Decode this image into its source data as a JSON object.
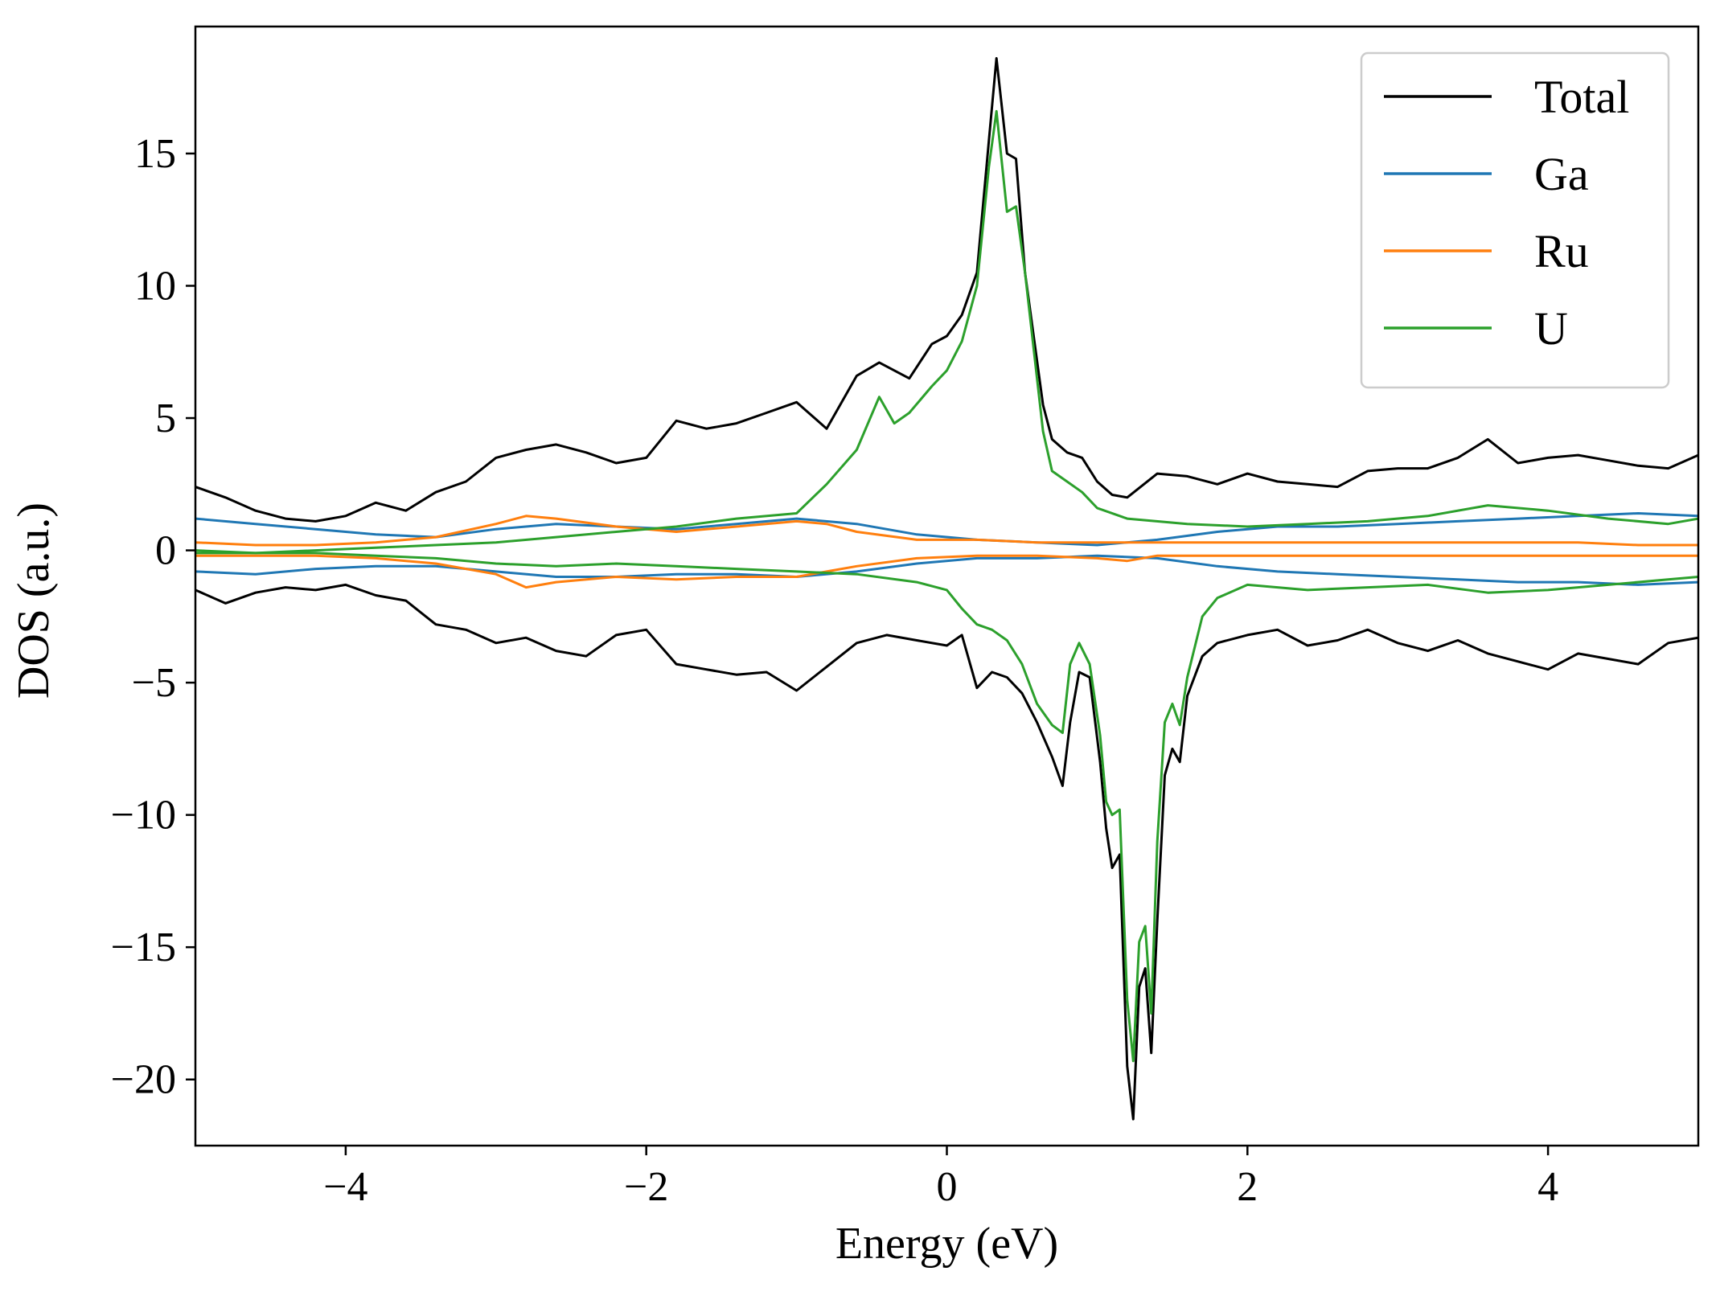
{
  "chart_data": {
    "type": "line",
    "title": "",
    "xlabel": "Energy (eV)",
    "ylabel": "DOS (a.u.)",
    "xlim": [
      -5,
      5
    ],
    "ylim": [
      -22.5,
      19.8
    ],
    "xticks": [
      -4,
      -2,
      0,
      2,
      4
    ],
    "xtick_labels": [
      "−4",
      "−2",
      "0",
      "2",
      "4"
    ],
    "yticks": [
      -20,
      -15,
      -10,
      -5,
      0,
      5,
      10,
      15
    ],
    "ytick_labels": [
      "−20",
      "−15",
      "−10",
      "−5",
      "0",
      "5",
      "10",
      "15"
    ],
    "grid": false,
    "legend": "top-right",
    "series": [
      {
        "name": "Total",
        "spin": "up",
        "color": "#000000",
        "x": [
          -5.0,
          -4.8,
          -4.6,
          -4.4,
          -4.2,
          -4.0,
          -3.8,
          -3.6,
          -3.4,
          -3.2,
          -3.0,
          -2.8,
          -2.6,
          -2.4,
          -2.2,
          -2.0,
          -1.8,
          -1.6,
          -1.4,
          -1.2,
          -1.0,
          -0.8,
          -0.6,
          -0.45,
          -0.35,
          -0.25,
          -0.1,
          0.0,
          0.1,
          0.2,
          0.28,
          0.33,
          0.4,
          0.46,
          0.52,
          0.58,
          0.64,
          0.7,
          0.8,
          0.9,
          1.0,
          1.1,
          1.2,
          1.4,
          1.6,
          1.8,
          2.0,
          2.2,
          2.4,
          2.6,
          2.8,
          3.0,
          3.2,
          3.4,
          3.6,
          3.8,
          4.0,
          4.2,
          4.4,
          4.6,
          4.8,
          5.0
        ],
        "y": [
          2.4,
          2.0,
          1.5,
          1.2,
          1.1,
          1.3,
          1.8,
          1.5,
          2.2,
          2.6,
          3.5,
          3.8,
          4.0,
          3.7,
          3.3,
          3.5,
          4.9,
          4.6,
          4.8,
          5.2,
          5.6,
          4.6,
          6.6,
          7.1,
          6.8,
          6.5,
          7.8,
          8.1,
          8.9,
          10.5,
          15.5,
          18.6,
          15.0,
          14.8,
          10.5,
          8.0,
          5.5,
          4.2,
          3.7,
          3.5,
          2.6,
          2.1,
          2.0,
          2.9,
          2.8,
          2.5,
          2.9,
          2.6,
          2.5,
          2.4,
          3.0,
          3.1,
          3.1,
          3.5,
          4.2,
          3.3,
          3.5,
          3.6,
          3.4,
          3.2,
          3.1,
          3.6
        ]
      },
      {
        "name": "Total",
        "spin": "down",
        "color": "#000000",
        "x": [
          -5.0,
          -4.8,
          -4.6,
          -4.4,
          -4.2,
          -4.0,
          -3.8,
          -3.6,
          -3.4,
          -3.2,
          -3.0,
          -2.8,
          -2.6,
          -2.4,
          -2.2,
          -2.0,
          -1.8,
          -1.6,
          -1.4,
          -1.2,
          -1.0,
          -0.8,
          -0.6,
          -0.4,
          -0.2,
          0.0,
          0.1,
          0.2,
          0.3,
          0.4,
          0.5,
          0.6,
          0.7,
          0.77,
          0.82,
          0.88,
          0.95,
          1.02,
          1.06,
          1.1,
          1.15,
          1.2,
          1.24,
          1.28,
          1.32,
          1.36,
          1.4,
          1.45,
          1.5,
          1.55,
          1.6,
          1.7,
          1.8,
          2.0,
          2.2,
          2.4,
          2.6,
          2.8,
          3.0,
          3.2,
          3.4,
          3.6,
          3.8,
          4.0,
          4.2,
          4.4,
          4.6,
          4.8,
          5.0
        ],
        "y": [
          -1.5,
          -2.0,
          -1.6,
          -1.4,
          -1.5,
          -1.3,
          -1.7,
          -1.9,
          -2.8,
          -3.0,
          -3.5,
          -3.3,
          -3.8,
          -4.0,
          -3.2,
          -3.0,
          -4.3,
          -4.5,
          -4.7,
          -4.6,
          -5.3,
          -4.4,
          -3.5,
          -3.2,
          -3.4,
          -3.6,
          -3.2,
          -5.2,
          -4.6,
          -4.8,
          -5.4,
          -6.5,
          -7.8,
          -8.9,
          -6.5,
          -4.6,
          -4.8,
          -8.0,
          -10.5,
          -12.0,
          -11.5,
          -19.5,
          -21.5,
          -16.5,
          -15.8,
          -19.0,
          -14.0,
          -8.5,
          -7.5,
          -8.0,
          -5.5,
          -4.0,
          -3.5,
          -3.2,
          -3.0,
          -3.6,
          -3.4,
          -3.0,
          -3.5,
          -3.8,
          -3.4,
          -3.9,
          -4.2,
          -4.5,
          -3.9,
          -4.1,
          -4.3,
          -3.5,
          -3.3
        ]
      },
      {
        "name": "Ga",
        "spin": "up",
        "color": "#1f77b4",
        "x": [
          -5.0,
          -4.6,
          -4.2,
          -3.8,
          -3.4,
          -3.0,
          -2.6,
          -2.2,
          -1.8,
          -1.4,
          -1.0,
          -0.6,
          -0.2,
          0.2,
          0.6,
          1.0,
          1.4,
          1.8,
          2.2,
          2.6,
          3.0,
          3.4,
          3.8,
          4.2,
          4.6,
          5.0
        ],
        "y": [
          1.2,
          1.0,
          0.8,
          0.6,
          0.5,
          0.8,
          1.0,
          0.9,
          0.8,
          1.0,
          1.2,
          1.0,
          0.6,
          0.4,
          0.3,
          0.2,
          0.4,
          0.7,
          0.9,
          0.9,
          1.0,
          1.1,
          1.2,
          1.3,
          1.4,
          1.3
        ]
      },
      {
        "name": "Ga",
        "spin": "down",
        "color": "#1f77b4",
        "x": [
          -5.0,
          -4.6,
          -4.2,
          -3.8,
          -3.4,
          -3.0,
          -2.6,
          -2.2,
          -1.8,
          -1.4,
          -1.0,
          -0.6,
          -0.2,
          0.2,
          0.6,
          1.0,
          1.4,
          1.8,
          2.2,
          2.6,
          3.0,
          3.4,
          3.8,
          4.2,
          4.6,
          5.0
        ],
        "y": [
          -0.8,
          -0.9,
          -0.7,
          -0.6,
          -0.6,
          -0.8,
          -1.0,
          -1.0,
          -0.9,
          -0.9,
          -1.0,
          -0.8,
          -0.5,
          -0.3,
          -0.3,
          -0.2,
          -0.3,
          -0.6,
          -0.8,
          -0.9,
          -1.0,
          -1.1,
          -1.2,
          -1.2,
          -1.3,
          -1.2
        ]
      },
      {
        "name": "Ru",
        "spin": "up",
        "color": "#ff7f0e",
        "x": [
          -5.0,
          -4.6,
          -4.2,
          -3.8,
          -3.4,
          -3.0,
          -2.8,
          -2.6,
          -2.2,
          -1.8,
          -1.4,
          -1.0,
          -0.8,
          -0.6,
          -0.2,
          0.2,
          0.6,
          1.0,
          1.4,
          1.8,
          2.2,
          2.6,
          3.0,
          3.4,
          3.8,
          4.2,
          4.6,
          5.0
        ],
        "y": [
          0.3,
          0.2,
          0.2,
          0.3,
          0.5,
          1.0,
          1.3,
          1.2,
          0.9,
          0.7,
          0.9,
          1.1,
          1.0,
          0.7,
          0.4,
          0.4,
          0.3,
          0.3,
          0.3,
          0.3,
          0.3,
          0.3,
          0.3,
          0.3,
          0.3,
          0.3,
          0.2,
          0.2
        ]
      },
      {
        "name": "Ru",
        "spin": "down",
        "color": "#ff7f0e",
        "x": [
          -5.0,
          -4.6,
          -4.2,
          -3.8,
          -3.4,
          -3.0,
          -2.8,
          -2.6,
          -2.2,
          -1.8,
          -1.4,
          -1.0,
          -0.8,
          -0.6,
          -0.2,
          0.2,
          0.6,
          1.0,
          1.2,
          1.4,
          1.8,
          2.2,
          2.6,
          3.0,
          3.4,
          3.8,
          4.2,
          4.6,
          5.0
        ],
        "y": [
          -0.2,
          -0.2,
          -0.2,
          -0.3,
          -0.5,
          -0.9,
          -1.4,
          -1.2,
          -1.0,
          -1.1,
          -1.0,
          -1.0,
          -0.8,
          -0.6,
          -0.3,
          -0.2,
          -0.2,
          -0.3,
          -0.4,
          -0.2,
          -0.2,
          -0.2,
          -0.2,
          -0.2,
          -0.2,
          -0.2,
          -0.2,
          -0.2,
          -0.2
        ]
      },
      {
        "name": "U",
        "spin": "up",
        "color": "#2ca02c",
        "x": [
          -5.0,
          -4.6,
          -4.2,
          -3.8,
          -3.4,
          -3.0,
          -2.6,
          -2.2,
          -1.8,
          -1.4,
          -1.0,
          -0.8,
          -0.6,
          -0.45,
          -0.35,
          -0.25,
          -0.1,
          0.0,
          0.1,
          0.2,
          0.28,
          0.33,
          0.4,
          0.46,
          0.52,
          0.58,
          0.64,
          0.7,
          0.8,
          0.9,
          1.0,
          1.2,
          1.6,
          2.0,
          2.4,
          2.8,
          3.2,
          3.6,
          4.0,
          4.4,
          4.8,
          5.0
        ],
        "y": [
          -0.1,
          -0.1,
          0.0,
          0.1,
          0.2,
          0.3,
          0.5,
          0.7,
          0.9,
          1.2,
          1.4,
          2.5,
          3.8,
          5.8,
          4.8,
          5.2,
          6.2,
          6.8,
          7.9,
          10.0,
          14.5,
          16.6,
          12.8,
          13.0,
          10.5,
          7.5,
          4.5,
          3.0,
          2.6,
          2.2,
          1.6,
          1.2,
          1.0,
          0.9,
          1.0,
          1.1,
          1.3,
          1.7,
          1.5,
          1.2,
          1.0,
          1.2
        ]
      },
      {
        "name": "U",
        "spin": "down",
        "color": "#2ca02c",
        "x": [
          -5.0,
          -4.6,
          -4.2,
          -3.8,
          -3.4,
          -3.0,
          -2.6,
          -2.2,
          -1.8,
          -1.4,
          -1.0,
          -0.6,
          -0.2,
          0.0,
          0.1,
          0.2,
          0.3,
          0.4,
          0.5,
          0.6,
          0.7,
          0.77,
          0.82,
          0.88,
          0.95,
          1.02,
          1.06,
          1.1,
          1.15,
          1.2,
          1.24,
          1.28,
          1.32,
          1.36,
          1.4,
          1.45,
          1.5,
          1.55,
          1.6,
          1.7,
          1.8,
          2.0,
          2.4,
          2.8,
          3.2,
          3.6,
          4.0,
          4.4,
          4.8,
          5.0
        ],
        "y": [
          0.0,
          -0.1,
          -0.1,
          -0.2,
          -0.3,
          -0.5,
          -0.6,
          -0.5,
          -0.6,
          -0.7,
          -0.8,
          -0.9,
          -1.2,
          -1.5,
          -2.2,
          -2.8,
          -3.0,
          -3.4,
          -4.3,
          -5.8,
          -6.6,
          -6.9,
          -4.3,
          -3.5,
          -4.3,
          -7.0,
          -9.5,
          -10.0,
          -9.8,
          -17.0,
          -19.3,
          -14.8,
          -14.2,
          -17.5,
          -11.0,
          -6.5,
          -5.8,
          -6.6,
          -4.8,
          -2.5,
          -1.8,
          -1.3,
          -1.5,
          -1.4,
          -1.3,
          -1.6,
          -1.5,
          -1.3,
          -1.1,
          -1.0
        ]
      }
    ]
  }
}
